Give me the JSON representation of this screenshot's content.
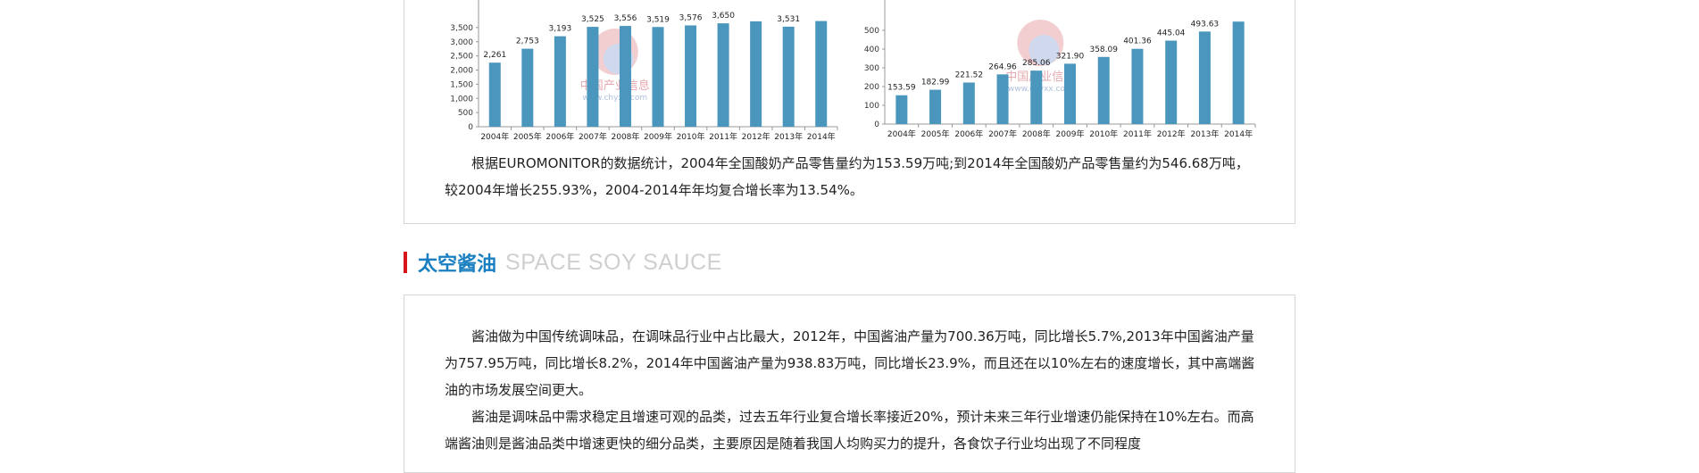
{
  "chart_data": [
    {
      "type": "bar",
      "categories": [
        "2004年",
        "2005年",
        "2006年",
        "2007年",
        "2008年",
        "2009年",
        "2010年",
        "2011年",
        "2012年",
        "2013年",
        "2014年"
      ],
      "values": [
        2261,
        2753,
        3193,
        3525,
        3556,
        3519,
        3576,
        3650,
        3720,
        3531,
        3730
      ],
      "labels": [
        "2,261",
        "2,753",
        "3,193",
        "3,525",
        "3,556",
        "3,519",
        "3,576",
        "3,650",
        "",
        "3,531",
        ""
      ],
      "yticks": [
        "0",
        "500",
        "1,000",
        "1,500",
        "2,000",
        "2,500",
        "3,000",
        "3,500"
      ],
      "ylim": [
        0,
        4000
      ],
      "color": "#4a96bd",
      "watermark": [
        "中国产业信息",
        "www.chyxx.com"
      ]
    },
    {
      "type": "bar",
      "categories": [
        "2004年",
        "2005年",
        "2006年",
        "2007年",
        "2008年",
        "2009年",
        "2010年",
        "2011年",
        "2012年",
        "2013年",
        "2014年"
      ],
      "values": [
        153.59,
        182.99,
        221.52,
        264.96,
        285.06,
        321.9,
        358.09,
        401.36,
        445.04,
        493.63,
        546.68
      ],
      "labels": [
        "153.59",
        "182.99",
        "221.52",
        "264.96",
        "285.06",
        "321.90",
        "358.09",
        "401.36",
        "445.04",
        "493.63",
        ""
      ],
      "yticks": [
        "0",
        "100",
        "200",
        "300",
        "400",
        "500"
      ],
      "ylim": [
        0,
        600
      ],
      "color": "#4a96bd",
      "watermark": [
        "中国产业信息",
        "www.chyxx.com"
      ]
    }
  ],
  "top_paragraph": "根据EUROMONITOR的数据统计，2004年全国酸奶产品零售量约为153.59万吨;到2014年全国酸奶产品零售量约为546.68万吨，较2004年增长255.93%，2004-2014年年均复合增长率为13.54%。",
  "section": {
    "title_zh": "太空酱油",
    "title_en": "SPACE SOY SAUCE"
  },
  "paragraphs": [
    "酱油做为中国传统调味品，在调味品行业中占比最大，2012年，中国酱油产量为700.36万吨，同比增长5.7%,2013年中国酱油产量为757.95万吨，同比增长8.2%，2014年中国酱油产量为938.83万吨，同比增长23.9%，而且还在以10%左右的速度增长，其中高端酱油的市场发展空间更大。",
    "酱油是调味品中需求稳定且增速可观的品类，过去五年行业复合增长率接近20%，预计未来三年行业增速仍能保持在10%左右。而高端酱油则是酱油品类中增速更快的细分品类，主要原因是随着我国人均购买力的提升，各食饮子行业均出现了不同程度"
  ],
  "colors": {
    "accent_red": "#d7141a",
    "title_blue": "#1a7fc1",
    "bar": "#4a96bd"
  }
}
